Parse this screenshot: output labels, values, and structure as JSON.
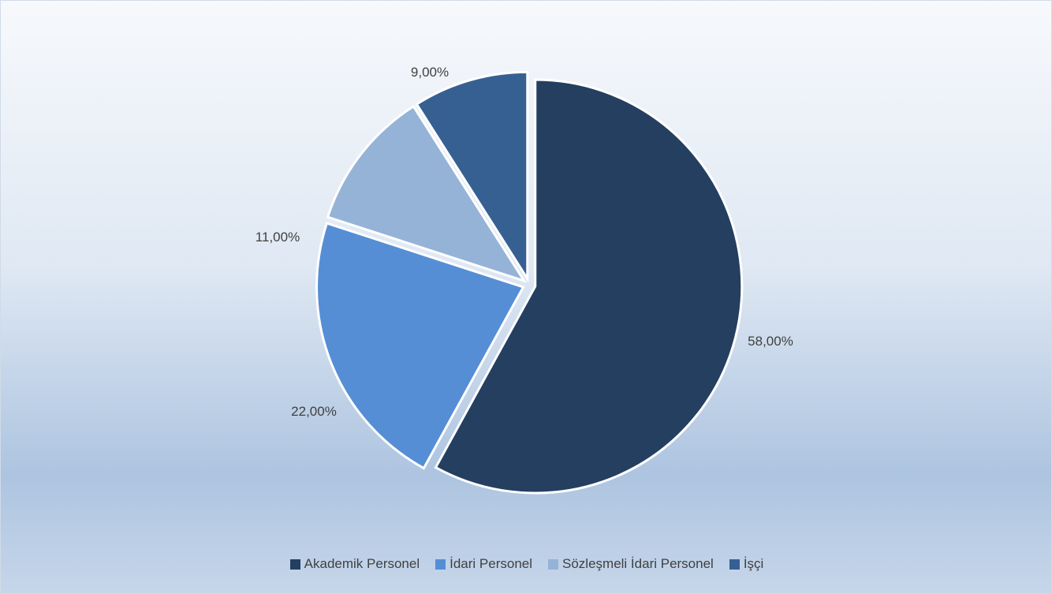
{
  "chart_data": {
    "type": "pie",
    "title": "",
    "legend_position": "bottom",
    "slices": [
      {
        "name": "Akademik Personel",
        "value": 58.0,
        "label": "58,00%",
        "color": "#243f60"
      },
      {
        "name": "İdari Personel",
        "value": 22.0,
        "label": "22,00%",
        "color": "#558ed5"
      },
      {
        "name": "Sözleşmeli İdari Personel",
        "value": 11.0,
        "label": "11,00%",
        "color": "#95b3d7"
      },
      {
        "name": "İşçi",
        "value": 9.0,
        "label": "9,00%",
        "color": "#376092"
      }
    ]
  }
}
